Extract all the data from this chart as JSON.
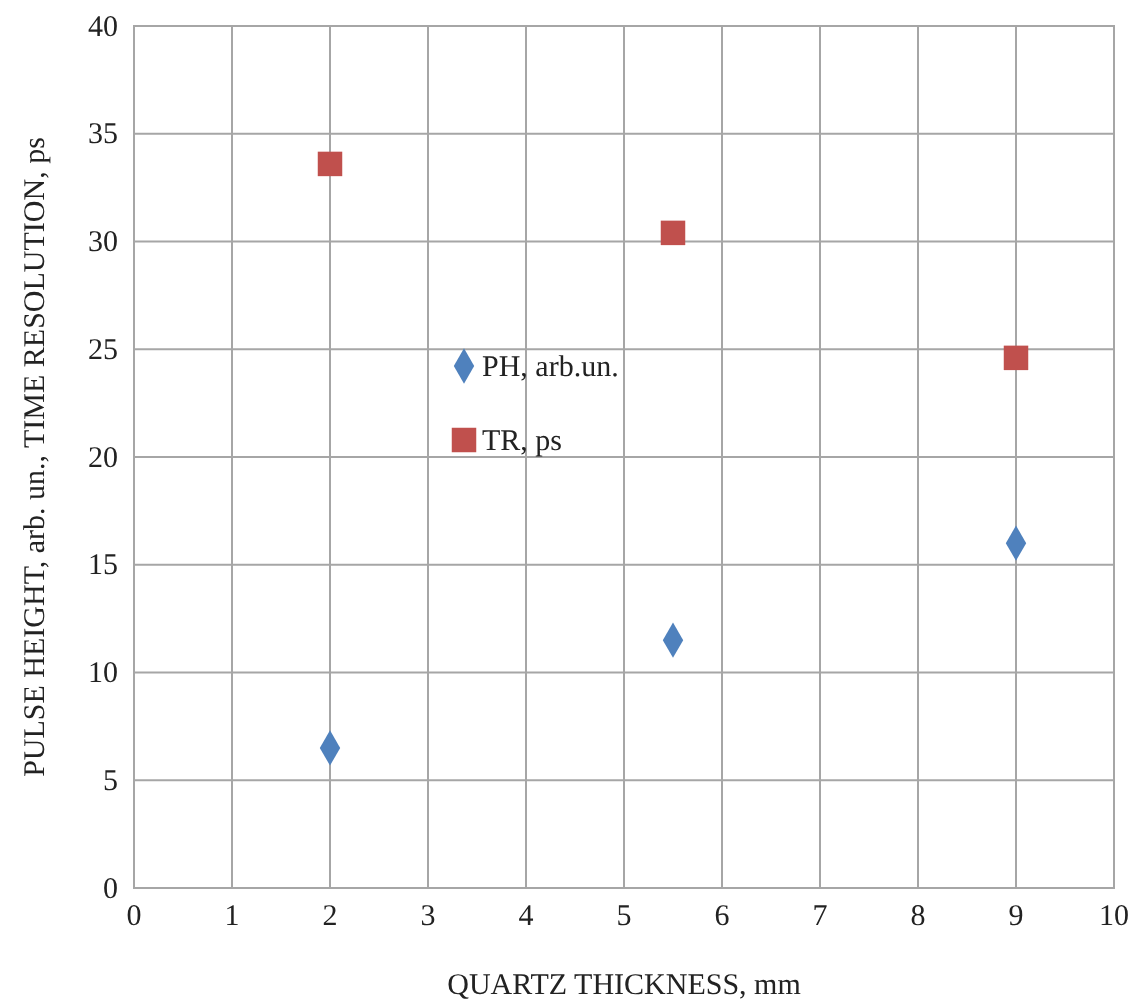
{
  "chart_data": {
    "type": "scatter",
    "xlabel": "QUARTZ THICKNESS, mm",
    "ylabel": "PULSE HEIGHT, arb. un., TIME RESOLUTION, ps",
    "x": [
      2,
      5.5,
      9
    ],
    "series": [
      {
        "name": "PH, arb.un.",
        "color": "#4f81bd",
        "marker": "diamond",
        "values": [
          6.5,
          11.5,
          16.0
        ]
      },
      {
        "name": "TR, ps",
        "color": "#c0504d",
        "marker": "square",
        "values": [
          33.6,
          30.4,
          24.6
        ]
      }
    ],
    "xlim": [
      0,
      10
    ],
    "xticks": [
      0,
      1,
      2,
      3,
      4,
      5,
      6,
      7,
      8,
      9,
      10
    ],
    "ylim": [
      0,
      40
    ],
    "yticks": [
      0,
      5,
      10,
      15,
      20,
      25,
      30,
      35,
      40
    ],
    "grid": true,
    "legend": "left"
  }
}
